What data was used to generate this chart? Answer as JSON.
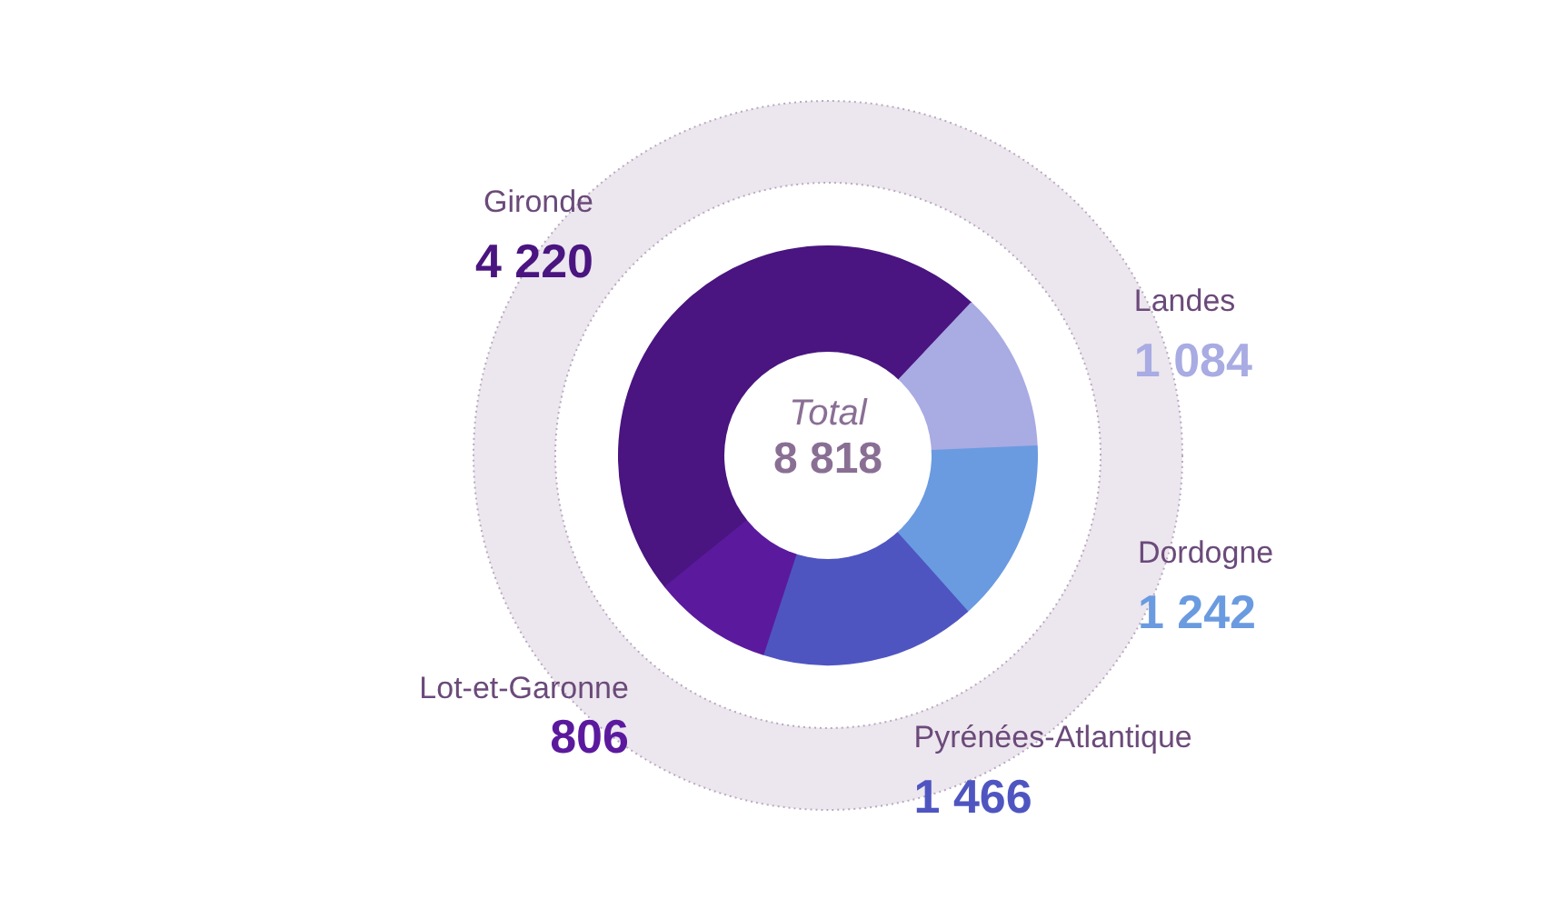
{
  "chart_data": {
    "type": "donut",
    "categories": [
      "Gironde",
      "Landes",
      "Dordogne",
      "Pyrénées-Atlantique",
      "Lot-et-Garonne"
    ],
    "values": [
      4220,
      1084,
      1242,
      1466,
      806
    ],
    "value_labels": [
      "4 220",
      "1 084",
      "1 242",
      "1 466",
      "806"
    ],
    "colors": [
      "#4a1580",
      "#a9abe3",
      "#6a9be0",
      "#4f55c0",
      "#5b1a9e"
    ],
    "annotations": [
      "Total",
      "8 818"
    ],
    "legend": false
  }
}
